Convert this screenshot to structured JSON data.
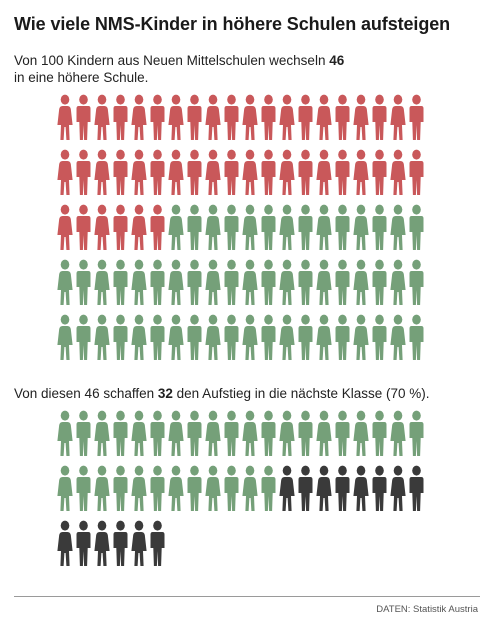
{
  "title": "Wie viele NMS-Kinder in höhere Schulen aufsteigen",
  "subtitle": {
    "line1_before": "Von 100 Kindern aus Neuen Mittelschulen wechseln ",
    "line1_number": "46",
    "line2": "in eine höhere Schule."
  },
  "caption2": {
    "before": "Von diesen 46 schaffen ",
    "number": "32",
    "after": " den Aufstieg in die nächste Klasse (70 %)."
  },
  "source": "DATEN: Statistik Austria",
  "colors": {
    "red": "#c9585a",
    "green": "#75a079",
    "dark": "#3a3a3a"
  },
  "chart_data": [
    {
      "type": "pictogram",
      "total": 100,
      "per_row": 20,
      "series": [
        {
          "value": 46,
          "color": "#c9585a"
        },
        {
          "value": 54,
          "color": "#75a079"
        }
      ]
    },
    {
      "type": "pictogram",
      "total": 46,
      "per_row": 20,
      "series": [
        {
          "value": 32,
          "color": "#75a079"
        },
        {
          "value": 14,
          "color": "#3a3a3a"
        }
      ]
    }
  ]
}
